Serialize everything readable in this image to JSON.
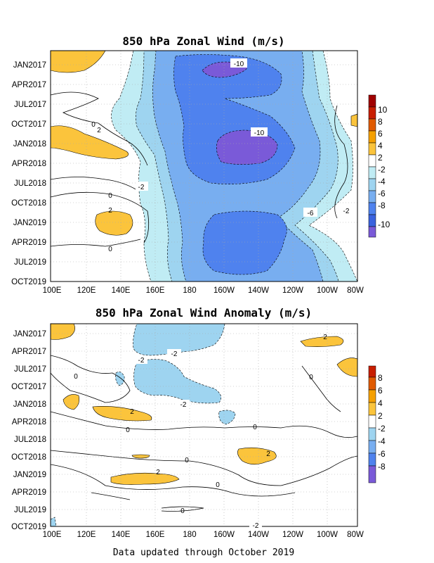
{
  "chart_data": [
    {
      "type": "heatmap",
      "title": "850 hPa Zonal Wind (m/s)",
      "x_ticks": [
        "100E",
        "120E",
        "140E",
        "160E",
        "180",
        "160W",
        "140W",
        "120W",
        "100W",
        "80W"
      ],
      "y_ticks": [
        "JAN2017",
        "APR2017",
        "JUL2017",
        "OCT2017",
        "JAN2018",
        "APR2018",
        "JUL2018",
        "OCT2018",
        "JAN2019",
        "APR2019",
        "JUL2019",
        "OCT2019"
      ],
      "colorbar": {
        "labels": [
          "10",
          "8",
          "6",
          "4",
          "2",
          "-2",
          "-4",
          "-6",
          "-8",
          "-10"
        ],
        "colors": [
          "#a00000",
          "#c81e00",
          "#e05a00",
          "#f5a000",
          "#fbc43c",
          "#ffffff",
          "#c0ecf4",
          "#9ed4f0",
          "#78aef0",
          "#4f82ee",
          "#3a62de",
          "#7a5ad8"
        ]
      },
      "contour_labels": [
        "-10",
        "-10",
        "-6",
        "-2",
        "-2",
        "0",
        "0",
        "0",
        "2",
        "2"
      ],
      "grid": true
    },
    {
      "type": "heatmap",
      "title": "850 hPa Zonal Wind Anomaly (m/s)",
      "x_ticks": [
        "100E",
        "120E",
        "140E",
        "160E",
        "180",
        "160W",
        "140W",
        "120W",
        "100W",
        "80W"
      ],
      "y_ticks": [
        "JAN2017",
        "APR2017",
        "JUL2017",
        "OCT2017",
        "JAN2018",
        "APR2018",
        "JUL2018",
        "OCT2018",
        "JAN2019",
        "APR2019",
        "JUL2019",
        "OCT2019"
      ],
      "colorbar": {
        "labels": [
          "8",
          "6",
          "4",
          "2",
          "-2",
          "-4",
          "-6",
          "-8"
        ],
        "colors": [
          "#c81e00",
          "#e05a00",
          "#f5a000",
          "#fbc43c",
          "#ffffff",
          "#9ed4f0",
          "#78aef0",
          "#4f82ee",
          "#7a5ad8"
        ]
      },
      "contour_labels": [
        "-2",
        "-2",
        "-2",
        "-2",
        "0",
        "0",
        "0",
        "0",
        "0",
        "0",
        "0",
        "2",
        "2",
        "2",
        "2"
      ],
      "grid": true
    }
  ],
  "footer": "Data updated through October 2019"
}
